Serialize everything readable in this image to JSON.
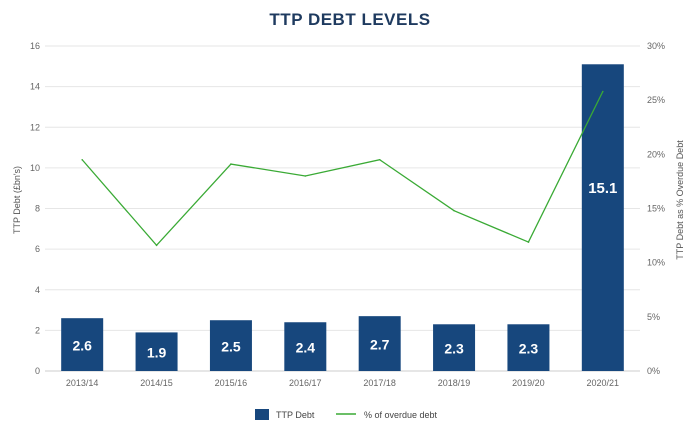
{
  "chart_data": {
    "type": "bar",
    "title": "TTP DEBT LEVELS",
    "categories": [
      "2013/14",
      "2014/15",
      "2015/16",
      "2016/17",
      "2017/18",
      "2018/19",
      "2019/20",
      "2020/21"
    ],
    "series": [
      {
        "name": "TTP Debt",
        "type": "bar",
        "axis": "left",
        "color": "#17477d",
        "values": [
          2.6,
          1.9,
          2.5,
          2.4,
          2.7,
          2.3,
          2.3,
          15.1
        ],
        "data_labels": [
          "2.6",
          "1.9",
          "2.5",
          "2.4",
          "2.7",
          "2.3",
          "2.3",
          "15.1"
        ]
      },
      {
        "name": "% of overdue debt",
        "type": "line",
        "axis": "right",
        "color": "#3aaa35",
        "values": [
          19.5,
          11.6,
          19.1,
          18.0,
          19.5,
          14.8,
          11.9,
          25.8
        ]
      }
    ],
    "ylabel": "TTP Debt (£bn's)",
    "ylim": [
      0,
      16
    ],
    "yticks": [
      "0",
      "2",
      "4",
      "6",
      "8",
      "10",
      "12",
      "14",
      "16"
    ],
    "ylabel_right": "TTP Debt as % Overdue Debt",
    "ylim_right": [
      0,
      30
    ],
    "yticks_right": [
      "0%",
      "5%",
      "10%",
      "15%",
      "20%",
      "25%",
      "30%"
    ],
    "grid": true,
    "legend_position": "bottom-center"
  }
}
